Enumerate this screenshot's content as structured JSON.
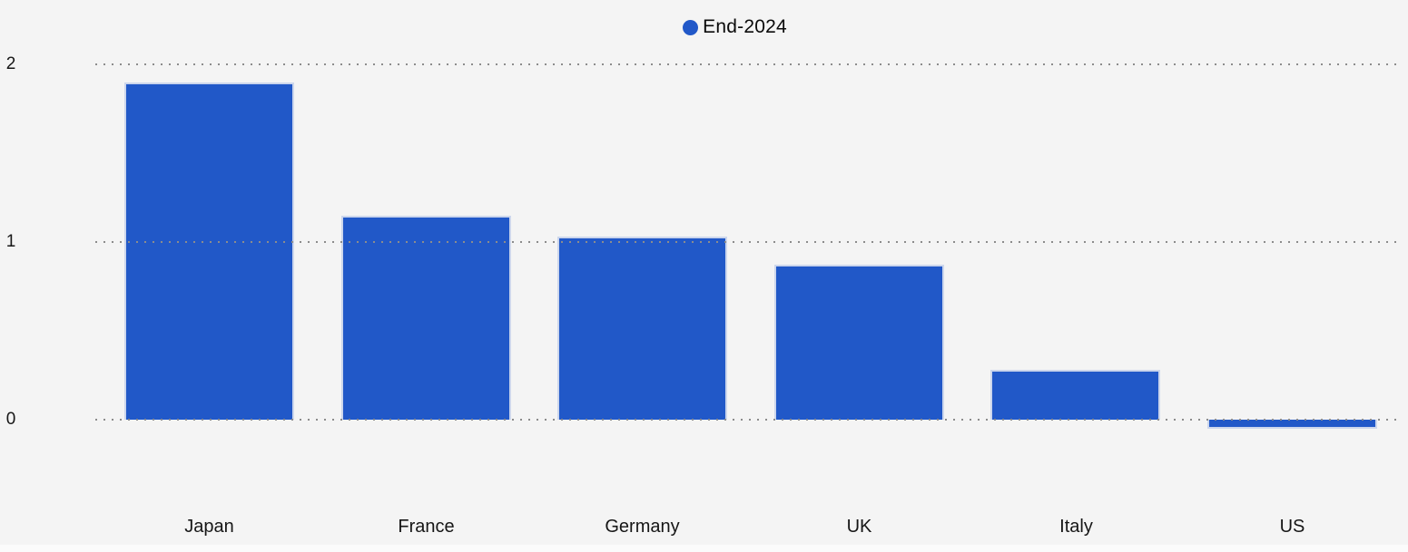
{
  "chart_data": {
    "type": "bar",
    "title": "",
    "categories": [
      "Japan",
      "France",
      "Germany",
      "UK",
      "Italy",
      "US"
    ],
    "series": [
      {
        "name": "End-2024",
        "values": [
          1.9,
          1.15,
          1.03,
          0.87,
          0.28,
          -0.05
        ]
      }
    ],
    "yticks": [
      0,
      1,
      2
    ],
    "ylim": [
      -0.1,
      2.05
    ],
    "grid": "horizontal-dotted",
    "legend_position": "top-center",
    "colors": {
      "bar": "#2158C8",
      "background": "#F4F4F4",
      "gridline": "#8C8C8C",
      "text": "#161616"
    }
  }
}
